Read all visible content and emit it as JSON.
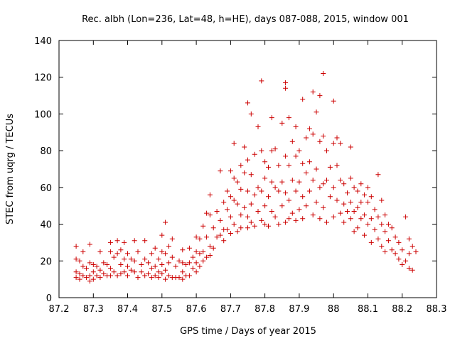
{
  "chart_data": {
    "type": "scatter",
    "title": "Rec. albh (Lon=236, Lat=48, h=HE), days 087-088, 2015, window 001",
    "xlabel": "GPS time / Days of year 2015",
    "ylabel": "STEC from uqrg / TECUs",
    "xlim": [
      87.2,
      88.3
    ],
    "ylim": [
      0,
      140
    ],
    "xticks": [
      87.2,
      87.3,
      87.4,
      87.5,
      87.6,
      87.7,
      87.8,
      87.9,
      88.0,
      88.1,
      88.2,
      88.3
    ],
    "xtick_labels": [
      "87.2",
      "87.3",
      "87.4",
      "87.5",
      "87.6",
      "87.7",
      "87.8",
      "87.9",
      "88",
      "88.1",
      "88.2",
      "88.3"
    ],
    "yticks": [
      0,
      20,
      40,
      60,
      80,
      100,
      120,
      140
    ],
    "ytick_labels": [
      "0",
      "20",
      "40",
      "60",
      "80",
      "100",
      "120",
      "140"
    ],
    "grid": false,
    "marker": "+",
    "color": "#cc0000",
    "series": [
      {
        "name": "STEC",
        "points": [
          [
            87.25,
            28
          ],
          [
            87.25,
            21
          ],
          [
            87.25,
            14
          ],
          [
            87.25,
            11
          ],
          [
            87.26,
            20
          ],
          [
            87.26,
            13
          ],
          [
            87.26,
            10
          ],
          [
            87.27,
            25
          ],
          [
            87.27,
            17
          ],
          [
            87.27,
            12
          ],
          [
            87.28,
            16
          ],
          [
            87.28,
            11
          ],
          [
            87.29,
            29
          ],
          [
            87.29,
            19
          ],
          [
            87.29,
            12
          ],
          [
            87.29,
            9
          ],
          [
            87.3,
            18
          ],
          [
            87.3,
            14
          ],
          [
            87.3,
            10
          ],
          [
            87.31,
            17
          ],
          [
            87.31,
            12
          ],
          [
            87.32,
            25
          ],
          [
            87.32,
            15
          ],
          [
            87.32,
            11
          ],
          [
            87.33,
            19
          ],
          [
            87.33,
            13
          ],
          [
            87.34,
            18
          ],
          [
            87.34,
            12
          ],
          [
            87.35,
            30
          ],
          [
            87.35,
            25
          ],
          [
            87.35,
            16
          ],
          [
            87.35,
            12
          ],
          [
            87.36,
            22
          ],
          [
            87.36,
            14
          ],
          [
            87.37,
            31
          ],
          [
            87.37,
            24
          ],
          [
            87.37,
            12
          ],
          [
            87.38,
            26
          ],
          [
            87.38,
            18
          ],
          [
            87.38,
            13
          ],
          [
            87.39,
            30
          ],
          [
            87.39,
            21
          ],
          [
            87.39,
            14
          ],
          [
            87.4,
            24
          ],
          [
            87.4,
            17
          ],
          [
            87.4,
            12
          ],
          [
            87.41,
            21
          ],
          [
            87.41,
            15
          ],
          [
            87.42,
            31
          ],
          [
            87.42,
            20
          ],
          [
            87.42,
            14
          ],
          [
            87.43,
            25
          ],
          [
            87.43,
            11
          ],
          [
            87.44,
            18
          ],
          [
            87.44,
            14
          ],
          [
            87.45,
            31
          ],
          [
            87.45,
            21
          ],
          [
            87.45,
            12
          ],
          [
            87.46,
            19
          ],
          [
            87.46,
            13
          ],
          [
            87.47,
            24
          ],
          [
            87.47,
            16
          ],
          [
            87.47,
            11
          ],
          [
            87.48,
            27
          ],
          [
            87.48,
            17
          ],
          [
            87.48,
            12
          ],
          [
            87.49,
            21
          ],
          [
            87.49,
            14
          ],
          [
            87.49,
            11
          ],
          [
            87.5,
            34
          ],
          [
            87.5,
            25
          ],
          [
            87.5,
            18
          ],
          [
            87.5,
            13
          ],
          [
            87.51,
            41
          ],
          [
            87.51,
            24
          ],
          [
            87.51,
            15
          ],
          [
            87.51,
            10
          ],
          [
            87.52,
            28
          ],
          [
            87.52,
            19
          ],
          [
            87.52,
            12
          ],
          [
            87.53,
            32
          ],
          [
            87.53,
            22
          ],
          [
            87.53,
            11
          ],
          [
            87.54,
            17
          ],
          [
            87.54,
            11
          ],
          [
            87.55,
            20
          ],
          [
            87.55,
            11
          ],
          [
            87.56,
            26
          ],
          [
            87.56,
            19
          ],
          [
            87.56,
            14
          ],
          [
            87.56,
            10
          ],
          [
            87.57,
            18
          ],
          [
            87.57,
            12
          ],
          [
            87.58,
            27
          ],
          [
            87.58,
            19
          ],
          [
            87.58,
            12
          ],
          [
            87.59,
            22
          ],
          [
            87.59,
            16
          ],
          [
            87.6,
            33
          ],
          [
            87.6,
            25
          ],
          [
            87.6,
            19
          ],
          [
            87.6,
            14
          ],
          [
            87.61,
            32
          ],
          [
            87.61,
            24
          ],
          [
            87.61,
            17
          ],
          [
            87.62,
            39
          ],
          [
            87.62,
            25
          ],
          [
            87.62,
            20
          ],
          [
            87.63,
            46
          ],
          [
            87.63,
            33
          ],
          [
            87.63,
            22
          ],
          [
            87.64,
            56
          ],
          [
            87.64,
            45
          ],
          [
            87.64,
            28
          ],
          [
            87.64,
            23
          ],
          [
            87.65,
            38
          ],
          [
            87.65,
            27
          ],
          [
            87.66,
            47
          ],
          [
            87.66,
            33
          ],
          [
            87.67,
            69
          ],
          [
            87.67,
            42
          ],
          [
            87.67,
            34
          ],
          [
            87.68,
            52
          ],
          [
            87.68,
            37
          ],
          [
            87.68,
            31
          ],
          [
            87.69,
            58
          ],
          [
            87.69,
            48
          ],
          [
            87.69,
            37
          ],
          [
            87.7,
            69
          ],
          [
            87.7,
            55
          ],
          [
            87.7,
            44
          ],
          [
            87.7,
            35
          ],
          [
            87.71,
            84
          ],
          [
            87.71,
            65
          ],
          [
            87.71,
            53
          ],
          [
            87.71,
            40
          ],
          [
            87.72,
            63
          ],
          [
            87.72,
            51
          ],
          [
            87.72,
            36
          ],
          [
            87.73,
            72
          ],
          [
            87.73,
            59
          ],
          [
            87.73,
            45
          ],
          [
            87.73,
            38
          ],
          [
            87.74,
            82
          ],
          [
            87.74,
            68
          ],
          [
            87.74,
            49
          ],
          [
            87.75,
            106
          ],
          [
            87.75,
            75
          ],
          [
            87.75,
            58
          ],
          [
            87.75,
            44
          ],
          [
            87.75,
            38
          ],
          [
            87.76,
            100
          ],
          [
            87.76,
            67
          ],
          [
            87.76,
            51
          ],
          [
            87.76,
            41
          ],
          [
            87.77,
            78
          ],
          [
            87.77,
            56
          ],
          [
            87.77,
            39
          ],
          [
            87.78,
            93
          ],
          [
            87.78,
            60
          ],
          [
            87.78,
            47
          ],
          [
            87.79,
            118
          ],
          [
            87.79,
            80
          ],
          [
            87.79,
            58
          ],
          [
            87.79,
            42
          ],
          [
            87.8,
            74
          ],
          [
            87.8,
            65
          ],
          [
            87.8,
            50
          ],
          [
            87.8,
            40
          ],
          [
            87.81,
            71
          ],
          [
            87.81,
            55
          ],
          [
            87.81,
            39
          ],
          [
            87.82,
            98
          ],
          [
            87.82,
            80
          ],
          [
            87.82,
            63
          ],
          [
            87.82,
            47
          ],
          [
            87.83,
            81
          ],
          [
            87.83,
            60
          ],
          [
            87.83,
            44
          ],
          [
            87.84,
            72
          ],
          [
            87.84,
            58
          ],
          [
            87.84,
            40
          ],
          [
            87.85,
            95
          ],
          [
            87.85,
            63
          ],
          [
            87.85,
            50
          ],
          [
            87.86,
            117
          ],
          [
            87.86,
            114
          ],
          [
            87.86,
            77
          ],
          [
            87.86,
            57
          ],
          [
            87.86,
            41
          ],
          [
            87.87,
            98
          ],
          [
            87.87,
            72
          ],
          [
            87.87,
            53
          ],
          [
            87.87,
            43
          ],
          [
            87.88,
            85
          ],
          [
            87.88,
            64
          ],
          [
            87.88,
            46
          ],
          [
            87.89,
            93
          ],
          [
            87.89,
            77
          ],
          [
            87.89,
            58
          ],
          [
            87.89,
            42
          ],
          [
            87.9,
            80
          ],
          [
            87.9,
            63
          ],
          [
            87.9,
            48
          ],
          [
            87.91,
            108
          ],
          [
            87.91,
            73
          ],
          [
            87.91,
            55
          ],
          [
            87.91,
            43
          ],
          [
            87.92,
            87
          ],
          [
            87.92,
            68
          ],
          [
            87.92,
            50
          ],
          [
            87.93,
            92
          ],
          [
            87.93,
            74
          ],
          [
            87.93,
            58
          ],
          [
            87.94,
            112
          ],
          [
            87.94,
            89
          ],
          [
            87.94,
            64
          ],
          [
            87.94,
            45
          ],
          [
            87.95,
            101
          ],
          [
            87.95,
            70
          ],
          [
            87.95,
            52
          ],
          [
            87.96,
            110
          ],
          [
            87.96,
            85
          ],
          [
            87.96,
            60
          ],
          [
            87.96,
            43
          ],
          [
            87.97,
            122
          ],
          [
            87.97,
            88
          ],
          [
            87.97,
            62
          ],
          [
            87.97,
            49
          ],
          [
            87.98,
            80
          ],
          [
            87.98,
            64
          ],
          [
            87.98,
            41
          ],
          [
            87.99,
            71
          ],
          [
            87.99,
            55
          ],
          [
            88.0,
            107
          ],
          [
            88.0,
            84
          ],
          [
            88.0,
            60
          ],
          [
            88.0,
            44
          ],
          [
            88.01,
            87
          ],
          [
            88.01,
            72
          ],
          [
            88.01,
            53
          ],
          [
            88.02,
            84
          ],
          [
            88.02,
            64
          ],
          [
            88.02,
            46
          ],
          [
            88.03,
            62
          ],
          [
            88.03,
            51
          ],
          [
            88.03,
            41
          ],
          [
            88.04,
            57
          ],
          [
            88.04,
            47
          ],
          [
            88.05,
            82
          ],
          [
            88.05,
            65
          ],
          [
            88.05,
            52
          ],
          [
            88.05,
            43
          ],
          [
            88.06,
            60
          ],
          [
            88.06,
            47
          ],
          [
            88.06,
            36
          ],
          [
            88.07,
            58
          ],
          [
            88.07,
            49
          ],
          [
            88.07,
            38
          ],
          [
            88.08,
            62
          ],
          [
            88.08,
            52
          ],
          [
            88.08,
            43
          ],
          [
            88.09,
            56
          ],
          [
            88.09,
            45
          ],
          [
            88.09,
            34
          ],
          [
            88.1,
            60
          ],
          [
            88.1,
            52
          ],
          [
            88.1,
            40
          ],
          [
            88.11,
            55
          ],
          [
            88.11,
            43
          ],
          [
            88.11,
            30
          ],
          [
            88.12,
            48
          ],
          [
            88.12,
            37
          ],
          [
            88.13,
            67
          ],
          [
            88.13,
            44
          ],
          [
            88.13,
            32
          ],
          [
            88.14,
            53
          ],
          [
            88.14,
            40
          ],
          [
            88.14,
            28
          ],
          [
            88.15,
            45
          ],
          [
            88.15,
            36
          ],
          [
            88.15,
            25
          ],
          [
            88.16,
            40
          ],
          [
            88.16,
            31
          ],
          [
            88.17,
            38
          ],
          [
            88.17,
            26
          ],
          [
            88.18,
            33
          ],
          [
            88.18,
            24
          ],
          [
            88.19,
            30
          ],
          [
            88.19,
            21
          ],
          [
            88.2,
            26
          ],
          [
            88.2,
            18
          ],
          [
            88.21,
            44
          ],
          [
            88.21,
            20
          ],
          [
            88.22,
            32
          ],
          [
            88.22,
            24
          ],
          [
            88.22,
            16
          ],
          [
            88.23,
            28
          ],
          [
            88.23,
            15
          ],
          [
            88.24,
            25
          ]
        ]
      }
    ]
  }
}
